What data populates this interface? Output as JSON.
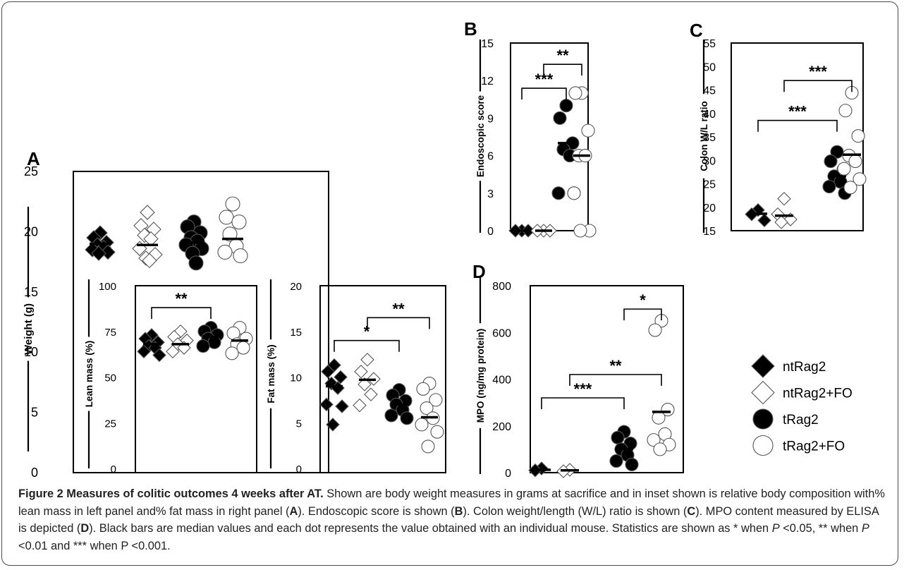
{
  "legend": {
    "items": [
      {
        "label": "ntRag2",
        "marker": "diamond",
        "fill": "#000000"
      },
      {
        "label": "ntRag2+FO",
        "marker": "diamond",
        "fill": "#ffffff"
      },
      {
        "label": "tRag2",
        "marker": "circle",
        "fill": "#000000"
      },
      {
        "label": "tRag2+FO",
        "marker": "circle",
        "fill": "#ffffff"
      }
    ]
  },
  "caption": {
    "title": "Figure 2 Measures of colitic outcomes 4 weeks after AT.",
    "p1": " Shown are body weight measures in grams at sacrifice and in inset shown is relative body composition with% lean mass in left panel and% fat mass in right panel (",
    "A": "A",
    "p2": "). Endoscopic score is shown (",
    "B": "B",
    "p3": "). Colon weight/length (W/L) ratio is shown (",
    "C": "C",
    "p4": "). MPO content measured by ELISA is depicted (",
    "D": "D",
    "p5": "). Black bars are median values and each dot represents the value obtained with an individual mouse. Statistics are shown as * when ",
    "P1": "P",
    "p6": " <0.05, ** when ",
    "P2": "P",
    "p7": " <0.01 and *** when P <0.001."
  },
  "chart_data": [
    {
      "panel": "A",
      "type": "scatter",
      "ylabel": "Weight (g)",
      "ylim": [
        0,
        25
      ],
      "yticks": [
        0,
        5,
        10,
        15,
        20,
        25
      ],
      "groups": [
        "ntRag2",
        "ntRag2+FO",
        "tRag2",
        "tRag2+FO"
      ],
      "series": [
        {
          "name": "ntRag2",
          "values": [
            19.9,
            19.5,
            19.1,
            18.9,
            18.7,
            18.5,
            18.3,
            18.2
          ],
          "median": 19.0
        },
        {
          "name": "ntRag2+FO",
          "values": [
            21.6,
            20.5,
            20.2,
            19.7,
            19.4,
            18.6,
            18.1,
            17.8,
            17.6
          ],
          "median": 18.9
        },
        {
          "name": "tRag2",
          "values": [
            20.8,
            20.4,
            19.9,
            19.5,
            19.2,
            18.9,
            18.6,
            18.2,
            17.4
          ],
          "median": 19.1
        },
        {
          "name": "tRag2+FO",
          "values": [
            22.3,
            21.2,
            20.8,
            19.8,
            18.8,
            18.3,
            18.0
          ],
          "median": 19.4
        }
      ]
    },
    {
      "panel": "A-inset-lean",
      "type": "scatter",
      "ylabel": "Lean mass (%)",
      "ylim": [
        0,
        100
      ],
      "yticks": [
        0,
        25,
        50,
        75,
        100
      ],
      "series": [
        {
          "name": "ntRag2",
          "values": [
            73,
            71,
            69,
            67,
            66,
            64,
            62
          ],
          "median": 68
        },
        {
          "name": "ntRag2+FO",
          "values": [
            75,
            72,
            70,
            68,
            66,
            64
          ],
          "median": 68
        },
        {
          "name": "tRag2",
          "values": [
            77,
            75,
            73,
            71,
            69,
            67
          ],
          "median": 72
        },
        {
          "name": "tRag2+FO",
          "values": [
            77,
            74,
            71,
            68,
            66,
            63
          ],
          "median": 70
        }
      ],
      "annotations": [
        {
          "from": "ntRag2",
          "to": "tRag2",
          "label": "**"
        }
      ]
    },
    {
      "panel": "A-inset-fat",
      "type": "scatter",
      "ylabel": "Fat mass (%)",
      "ylim": [
        0,
        20
      ],
      "yticks": [
        0,
        5,
        10,
        15,
        20
      ],
      "series": [
        {
          "name": "ntRag2",
          "values": [
            11.3,
            10.6,
            10.0,
            9.3,
            8.8,
            7.0,
            6.8,
            4.8
          ],
          "median": 9.0
        },
        {
          "name": "ntRag2+FO",
          "values": [
            11.9,
            10.6,
            9.8,
            9.2,
            8.1,
            6.9
          ],
          "median": 9.7
        },
        {
          "name": "tRag2",
          "values": [
            8.6,
            8.0,
            7.4,
            7.0,
            6.4,
            5.8,
            5.5
          ],
          "median": 7.0
        },
        {
          "name": "tRag2+FO",
          "values": [
            9.3,
            8.7,
            7.5,
            6.6,
            5.5,
            4.8,
            4.0,
            2.4
          ],
          "median": 5.6
        }
      ],
      "annotations": [
        {
          "from": "ntRag2",
          "to": "tRag2",
          "label": "*"
        },
        {
          "from": "ntRag2+FO",
          "to": "tRag2+FO",
          "label": "**"
        }
      ]
    },
    {
      "panel": "B",
      "type": "scatter",
      "ylabel": "Endoscopic score",
      "ylim": [
        0,
        15
      ],
      "yticks": [
        0,
        3,
        6,
        9,
        12,
        15
      ],
      "series": [
        {
          "name": "ntRag2",
          "values": [
            0,
            0,
            0
          ],
          "median": 0
        },
        {
          "name": "ntRag2+FO",
          "values": [
            0,
            0,
            0
          ],
          "median": 0
        },
        {
          "name": "tRag2",
          "values": [
            10,
            9,
            7,
            6.5,
            6,
            3,
            3
          ],
          "median": 7
        },
        {
          "name": "tRag2+FO",
          "values": [
            11,
            11,
            8,
            6,
            6,
            3,
            0,
            0
          ],
          "median": 6
        }
      ],
      "annotations": [
        {
          "from": "ntRag2",
          "to": "tRag2",
          "label": "***"
        },
        {
          "from": "ntRag2+FO",
          "to": "tRag2+FO",
          "label": "**"
        }
      ]
    },
    {
      "panel": "C",
      "type": "scatter",
      "ylabel": "Colon W/L ratio",
      "ylim": [
        15,
        55
      ],
      "yticks": [
        15,
        20,
        25,
        30,
        35,
        40,
        45,
        50,
        55
      ],
      "series": [
        {
          "name": "ntRag2",
          "values": [
            19.4,
            18.5,
            17.2
          ],
          "median": 18.6
        },
        {
          "name": "ntRag2+FO",
          "values": [
            21.8,
            18.5,
            17.4,
            16.8
          ],
          "median": 18.2
        },
        {
          "name": "tRag2",
          "values": [
            31.8,
            29.8,
            28.0,
            26.6,
            25.4,
            24.4,
            23.0
          ],
          "median": 26.6
        },
        {
          "name": "tRag2+FO",
          "values": [
            44.4,
            40.6,
            35.2,
            31.0,
            29.8,
            28.2,
            26.0,
            24.2
          ],
          "median": 31.2
        }
      ],
      "annotations": [
        {
          "from": "ntRag2",
          "to": "tRag2",
          "label": "***"
        },
        {
          "from": "ntRag2+FO",
          "to": "tRag2+FO",
          "label": "***"
        }
      ]
    },
    {
      "panel": "D",
      "type": "scatter",
      "ylabel": "MPO (ng/mg protein)",
      "ylim": [
        0,
        800
      ],
      "yticks": [
        0,
        200,
        400,
        600,
        800
      ],
      "series": [
        {
          "name": "ntRag2",
          "values": [
            18,
            10
          ],
          "median": 12
        },
        {
          "name": "ntRag2+FO",
          "values": [
            12,
            6
          ],
          "median": 10
        },
        {
          "name": "tRag2",
          "values": [
            175,
            150,
            125,
            100,
            75,
            50,
            35
          ],
          "median": 100
        },
        {
          "name": "tRag2+FO",
          "values": [
            650,
            610,
            270,
            235,
            165,
            140,
            120,
            100
          ],
          "median": 260
        }
      ],
      "annotations": [
        {
          "from": "ntRag2",
          "to": "tRag2",
          "label": "***"
        },
        {
          "from": "ntRag2+FO",
          "to": "tRag2+FO",
          "label": "**"
        },
        {
          "from": "tRag2",
          "to": "tRag2+FO",
          "label": "*"
        }
      ]
    }
  ]
}
